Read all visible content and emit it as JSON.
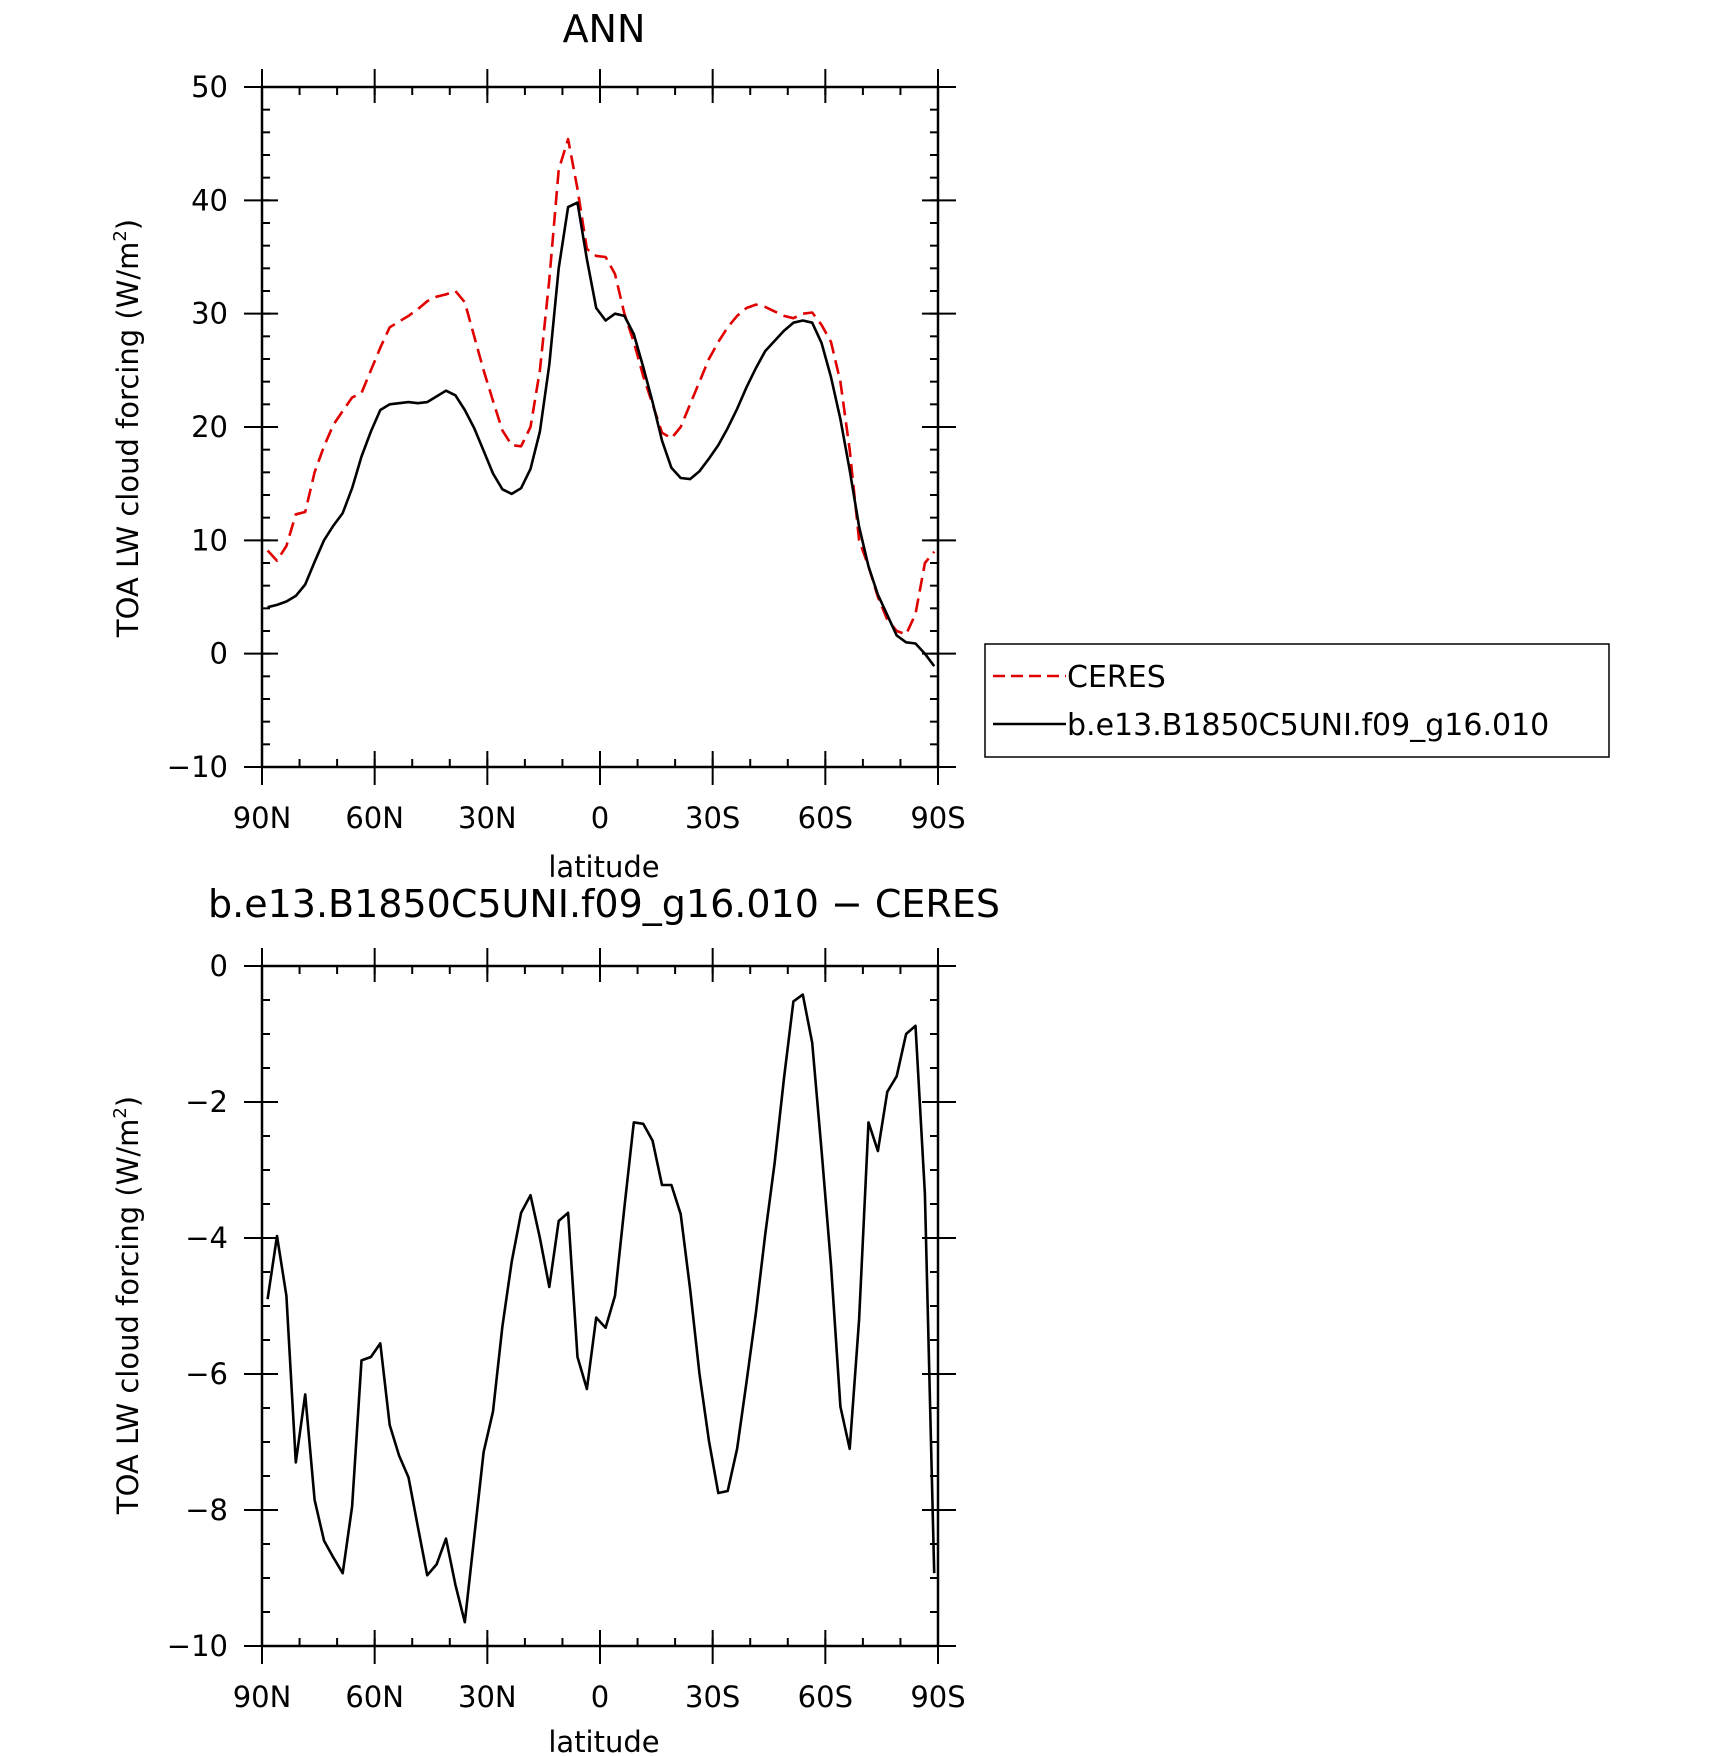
{
  "chart_data": [
    {
      "type": "line",
      "title": "ANN",
      "xlabel": "latitude",
      "ylabel_text": "TOA LW cloud forcing (W/m",
      "ylabel_sup": "2",
      "ylabel_close": ")",
      "xlim": [
        90,
        -90
      ],
      "ylim": [
        -10,
        50
      ],
      "yticks": [
        -10,
        0,
        10,
        20,
        30,
        40,
        50
      ],
      "yticklabels": [
        "−10",
        "0",
        "10",
        "20",
        "30",
        "40",
        "50"
      ],
      "xticks": [
        90,
        60,
        30,
        0,
        -30,
        -60,
        -90
      ],
      "xticklabels": [
        "90N",
        "60N",
        "30N",
        "0",
        "30S",
        "60S",
        "90S"
      ],
      "grid": false,
      "legend_position": "right",
      "x": [
        88.5,
        86,
        83.5,
        81,
        78.5,
        76,
        73.5,
        71,
        68.5,
        66,
        63.5,
        61,
        58.5,
        56,
        53.5,
        51,
        48.5,
        46,
        43.5,
        41,
        38.5,
        36,
        33.5,
        31,
        28.5,
        26,
        23.5,
        21,
        18.5,
        16,
        13.5,
        11,
        8.5,
        6,
        3.5,
        1,
        -1.5,
        -4,
        -6.5,
        -9,
        -11.5,
        -14,
        -16.5,
        -19,
        -21.5,
        -24,
        -26.5,
        -29,
        -31.5,
        -34,
        -36.5,
        -39,
        -41.5,
        -44,
        -46.5,
        -49,
        -51.5,
        -54,
        -56.5,
        -59,
        -61.5,
        -64,
        -66.5,
        -69,
        -71.5,
        -74,
        -76.5,
        -79,
        -81.5,
        -84,
        -86.5,
        -89
      ],
      "series": [
        {
          "name": "CERES",
          "color": "#e00000",
          "style": "dashed",
          "values": [
            9.1,
            8.2,
            9.5,
            12.3,
            12.5,
            16.0,
            18.3,
            20.2,
            21.4,
            22.6,
            23.0,
            25.0,
            27.0,
            28.8,
            29.3,
            29.8,
            30.4,
            31.1,
            31.5,
            31.7,
            32.0,
            31.0,
            28.0,
            25.0,
            22.3,
            19.7,
            18.4,
            18.3,
            20.0,
            25.0,
            33.0,
            42.7,
            45.4,
            41.0,
            35.7,
            35.1,
            35.0,
            33.5,
            30.0,
            27.5,
            24.5,
            22.0,
            19.5,
            19.0,
            20.0,
            22.0,
            24.0,
            26.0,
            27.5,
            28.8,
            29.8,
            30.5,
            30.8,
            30.6,
            30.2,
            29.8,
            29.6,
            30.0,
            30.1,
            29.0,
            27.5,
            24.0,
            18.0,
            10.0,
            7.7,
            5.0,
            3.0,
            2.0,
            1.7,
            3.5,
            8.0,
            9.0
          ],
          "values_len_note": ""
        },
        {
          "name": "b.e13.B1850C5UNI.f09_g16.010",
          "color": "#000000",
          "style": "solid",
          "values": [
            4.1,
            4.3,
            4.6,
            5.1,
            6.1,
            8.1,
            10.0,
            11.3,
            12.4,
            14.6,
            17.4,
            19.6,
            21.5,
            22.0,
            22.1,
            22.2,
            22.1,
            22.2,
            22.7,
            23.2,
            22.8,
            21.5,
            19.9,
            17.9,
            15.9,
            14.5,
            14.1,
            14.6,
            16.3,
            19.6,
            25.5,
            34.0,
            39.4,
            39.8,
            34.8,
            30.5,
            29.4,
            30.0,
            29.8,
            28.2,
            25.3,
            22.2,
            18.8,
            16.4,
            15.5,
            15.4,
            16.1,
            17.2,
            18.4,
            19.9,
            21.6,
            23.5,
            25.2,
            26.7,
            27.6,
            28.5,
            29.2,
            29.4,
            29.2,
            27.4,
            24.4,
            20.7,
            16.2,
            11.2,
            7.7,
            5.2,
            3.4,
            1.6,
            1.0,
            0.9,
            0.0,
            -1.1
          ]
        }
      ]
    },
    {
      "type": "line",
      "title": "b.e13.B1850C5UNI.f09_g16.010 − CERES",
      "xlabel": "latitude",
      "ylabel_text": "TOA LW cloud forcing (W/m",
      "ylabel_sup": "2",
      "ylabel_close": ")",
      "xlim": [
        90,
        -90
      ],
      "ylim": [
        -10,
        0
      ],
      "yticks": [
        -10,
        -8,
        -6,
        -4,
        -2,
        0
      ],
      "yticklabels": [
        "−10",
        "−8",
        "−6",
        "−4",
        "−2",
        "0"
      ],
      "xticks": [
        90,
        60,
        30,
        0,
        -30,
        -60,
        -90
      ],
      "xticklabels": [
        "90N",
        "60N",
        "30N",
        "0",
        "30S",
        "60S",
        "90S"
      ],
      "grid": false,
      "x": [
        88.5,
        86,
        83.5,
        81,
        78.5,
        76,
        73.5,
        71,
        68.5,
        66,
        63.5,
        61,
        58.5,
        56,
        53.5,
        51,
        48.5,
        46,
        43.5,
        41,
        38.5,
        36,
        33.5,
        31,
        28.5,
        26,
        23.5,
        21,
        18.5,
        16,
        13.5,
        11,
        8.5,
        6,
        3.5,
        1,
        -1.5,
        -4,
        -6.5,
        -9,
        -11.5,
        -14,
        -16.5,
        -19,
        -21.5,
        -24,
        -26.5,
        -29,
        -31.5,
        -34,
        -36.5,
        -39,
        -41.5,
        -44,
        -46.5,
        -49,
        -51.5,
        -54,
        -56.5,
        -59,
        -61.5,
        -64,
        -66.5,
        -69,
        -71.5,
        -74,
        -76.5,
        -79,
        -81.5,
        -84,
        -86.5,
        -89
      ],
      "series": [
        {
          "color": "#000000",
          "style": "solid",
          "values": [
            -4.9,
            -3.97,
            -4.85,
            -7.3,
            -6.3,
            -7.85,
            -8.45,
            -8.7,
            -8.93,
            -7.95,
            -5.8,
            -5.75,
            -5.55,
            -6.75,
            -7.2,
            -7.52,
            -8.25,
            -8.96,
            -8.8,
            -8.42,
            -9.1,
            -9.65,
            -8.4,
            -7.15,
            -6.55,
            -5.3,
            -4.35,
            -3.63,
            -3.37,
            -4.0,
            -4.72,
            -3.75,
            -3.63,
            -5.75,
            -6.22,
            -5.17,
            -5.32,
            -4.85,
            -3.55,
            -2.3,
            -2.32,
            -2.57,
            -3.22,
            -3.22,
            -3.65,
            -4.75,
            -6.0,
            -6.98,
            -7.75,
            -7.72,
            -7.1,
            -6.12,
            -5.1,
            -3.95,
            -2.9,
            -1.65,
            -0.52,
            -0.42,
            -1.13,
            -2.72,
            -4.4,
            -6.48,
            -7.1,
            -5.2,
            -2.3,
            -2.72,
            -1.85,
            -1.62,
            -1.0,
            -0.88,
            -3.35,
            -8.93
          ]
        }
      ]
    }
  ]
}
